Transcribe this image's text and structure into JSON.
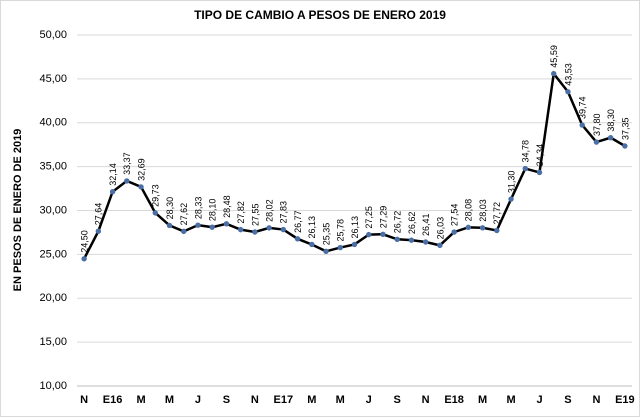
{
  "chart_data": {
    "type": "line",
    "title": "TIPO DE CAMBIO  A PESOS DE ENERO 2019",
    "y_label": "EN PESOS DE ENERO DE 2019",
    "categories": [
      "N",
      null,
      "E16",
      null,
      "M",
      null,
      "M",
      null,
      "J",
      null,
      "S",
      null,
      "N",
      null,
      "E17",
      null,
      "M",
      null,
      "M",
      null,
      "J",
      null,
      "S",
      null,
      "N",
      null,
      "E18",
      null,
      "M",
      null,
      "M",
      null,
      "J",
      null,
      "S",
      null,
      "N",
      null,
      "E19"
    ],
    "values": [
      24.5,
      27.64,
      32.14,
      33.37,
      32.69,
      29.73,
      28.3,
      27.62,
      28.33,
      28.1,
      28.48,
      27.82,
      27.55,
      28.02,
      27.83,
      26.77,
      26.13,
      25.35,
      25.78,
      26.13,
      27.25,
      27.29,
      26.72,
      26.62,
      26.41,
      26.03,
      27.54,
      28.08,
      28.03,
      27.72,
      31.3,
      34.78,
      34.34,
      45.59,
      43.53,
      39.74,
      37.8,
      38.3,
      37.35
    ],
    "value_labels": [
      "24,50",
      "27,64",
      "32,14",
      "33,37",
      "32,69",
      "29,73",
      "28,30",
      "27,62",
      "28,33",
      "28,10",
      "28,48",
      "27,82",
      "27,55",
      "28,02",
      "27,83",
      "26,77",
      "26,13",
      "25,35",
      "25,78",
      "26,13",
      "27,25",
      "27,29",
      "26,72",
      "26,62",
      "26,41",
      "26,03",
      "27,54",
      "28,08",
      "28,03",
      "27,72",
      "31,30",
      "34,78",
      "34,34",
      "45,59",
      "43,53",
      "39,74",
      "37,80",
      "38,30",
      "37,35"
    ],
    "color": "#000000",
    "marker_color": "#4a6fa5",
    "ylim": [
      10,
      50
    ],
    "yticks": [
      {
        "value": 10,
        "label": "10,00"
      },
      {
        "value": 15,
        "label": "15,00"
      },
      {
        "value": 20,
        "label": "20,00"
      },
      {
        "value": 25,
        "label": "25,00"
      },
      {
        "value": 30,
        "label": "30,00"
      },
      {
        "value": 35,
        "label": "35,00"
      },
      {
        "value": 40,
        "label": "40,00"
      },
      {
        "value": 45,
        "label": "45,00"
      },
      {
        "value": 50,
        "label": "50,00"
      }
    ],
    "grid": true
  }
}
